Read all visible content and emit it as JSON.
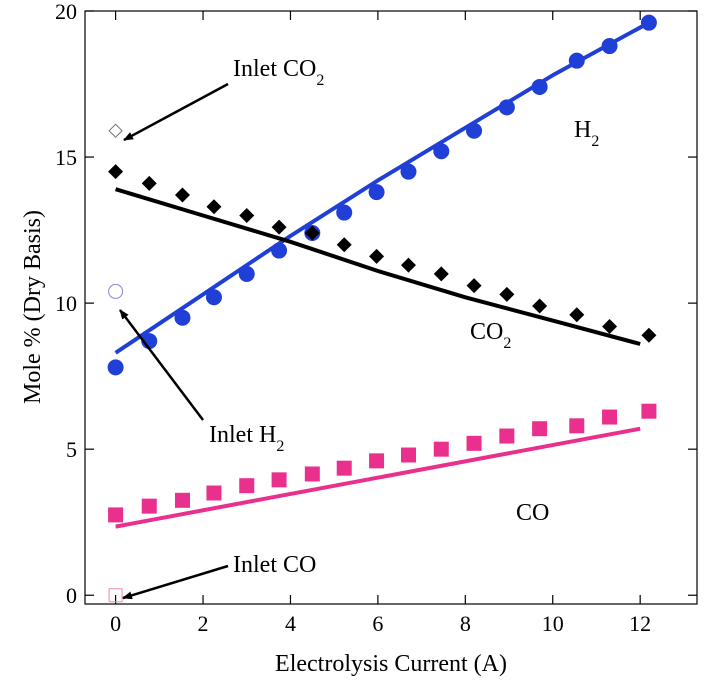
{
  "chart_data": {
    "type": "scatter",
    "title": "",
    "xlabel": "Electrolysis Current (A)",
    "ylabel": "Mole % (Dry Basis)",
    "xlim": [
      -0.7,
      13.3
    ],
    "ylim": [
      -0.3,
      20
    ],
    "xticks": [
      0,
      2,
      4,
      6,
      8,
      10,
      12
    ],
    "yticks": [
      0,
      5,
      10,
      15,
      20
    ],
    "grid": false,
    "legend": "none",
    "series": [
      {
        "label": "H",
        "label_sub": "2",
        "marker": "circle",
        "color": "#1f3fd6",
        "x": [
          0,
          0.77,
          1.53,
          2.25,
          3.0,
          3.74,
          4.5,
          5.23,
          5.97,
          6.7,
          7.45,
          8.2,
          8.95,
          9.7,
          10.55,
          11.3,
          12.2
        ],
        "y": [
          7.8,
          8.7,
          9.5,
          10.2,
          11.0,
          11.8,
          12.4,
          13.1,
          13.8,
          14.5,
          15.2,
          15.9,
          16.7,
          17.4,
          18.3,
          18.8,
          19.6
        ],
        "fit": {
          "x": [
            0,
            2,
            4,
            6,
            8,
            10,
            12.2
          ],
          "y": [
            8.3,
            10.3,
            12.3,
            14.2,
            16.0,
            17.8,
            19.6
          ]
        },
        "inlet": {
          "x": 0,
          "y": 10.4
        }
      },
      {
        "label": "CO",
        "label_sub": "2",
        "marker": "diamond",
        "color": "#000000",
        "x": [
          0,
          0.77,
          1.53,
          2.25,
          3.0,
          3.74,
          4.5,
          5.23,
          5.97,
          6.7,
          7.45,
          8.2,
          8.95,
          9.7,
          10.55,
          11.3,
          12.2
        ],
        "y": [
          14.5,
          14.1,
          13.7,
          13.3,
          13.0,
          12.6,
          12.4,
          12.0,
          11.6,
          11.3,
          11.0,
          10.6,
          10.3,
          9.9,
          9.6,
          9.2,
          8.9
        ],
        "fit": {
          "x": [
            0,
            2,
            4,
            6,
            8,
            10,
            12
          ],
          "y": [
            13.9,
            13.0,
            12.1,
            11.1,
            10.2,
            9.4,
            8.6
          ]
        },
        "inlet": {
          "x": 0,
          "y": 15.9
        }
      },
      {
        "label": "CO",
        "label_sub": "",
        "marker": "square",
        "color": "#e8308c",
        "x": [
          0,
          0.77,
          1.53,
          2.25,
          3.0,
          3.74,
          4.5,
          5.23,
          5.97,
          6.7,
          7.45,
          8.2,
          8.95,
          9.7,
          10.55,
          11.3,
          12.2
        ],
        "y": [
          2.75,
          3.05,
          3.25,
          3.5,
          3.75,
          3.95,
          4.15,
          4.35,
          4.6,
          4.8,
          5.0,
          5.2,
          5.45,
          5.7,
          5.8,
          6.1,
          6.3
        ],
        "fit": {
          "x": [
            0,
            12
          ],
          "y": [
            2.35,
            5.7
          ]
        },
        "inlet": {
          "x": 0,
          "y": 0
        }
      }
    ],
    "annotations": [
      {
        "text": "Inlet CO",
        "sub": "2"
      },
      {
        "text": "Inlet H",
        "sub": "2"
      },
      {
        "text": "Inlet CO",
        "sub": ""
      }
    ]
  }
}
